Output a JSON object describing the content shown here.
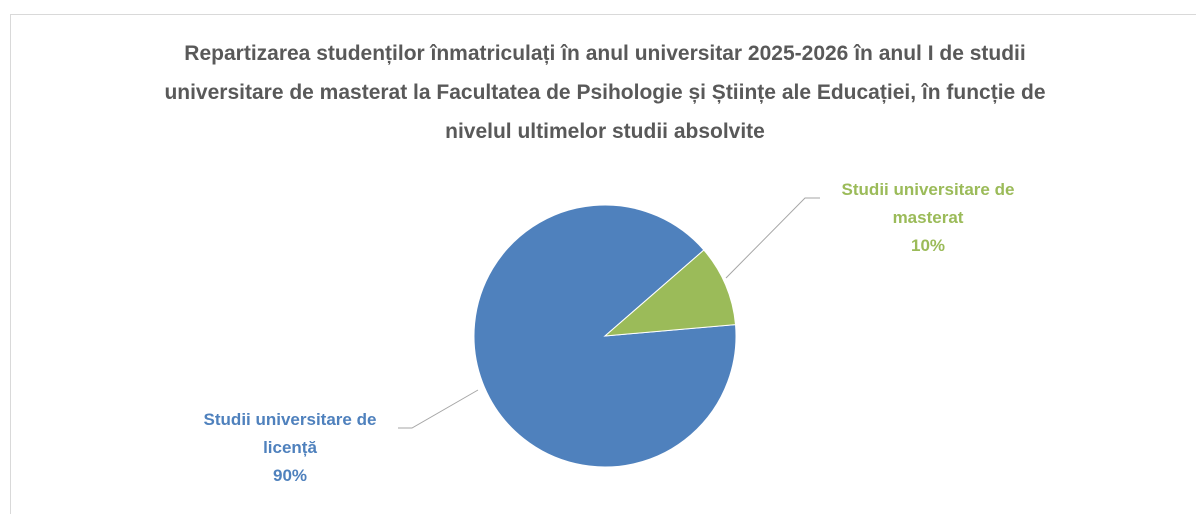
{
  "chart_data": {
    "type": "pie",
    "title": "Repartizarea studenților înmatriculați în anul universitar 2025-2026 în anul I de studii universitare de masterat la Facultatea de Psihologie și Științe ale Educației, în funcție de nivelul ultimelor studii absolvite",
    "categories": [
      "Studii universitare de licență",
      "Studii universitare de masterat"
    ],
    "values": [
      90,
      10
    ],
    "value_labels": [
      "90%",
      "10%"
    ],
    "colors": [
      "#4f81bd",
      "#9bbb59"
    ]
  }
}
